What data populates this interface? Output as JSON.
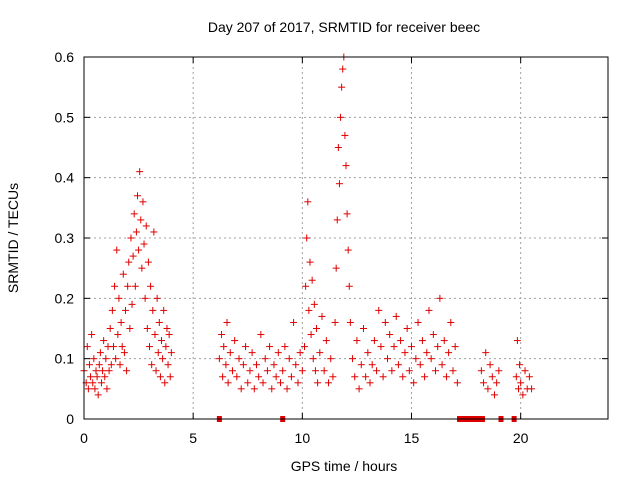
{
  "chart_data": {
    "type": "scatter",
    "title": "Day 207 of 2017, SRMTID for receiver beec",
    "xlabel": "GPS time / hours",
    "ylabel": "SRMTID / TECUs",
    "xlim": [
      0,
      24
    ],
    "ylim": [
      0,
      0.6
    ],
    "x_ticks": [
      0,
      5,
      10,
      15,
      20
    ],
    "y_ticks": [
      0,
      0.1,
      0.2,
      0.3,
      0.4,
      0.5,
      0.6
    ],
    "x_tick_labels": [
      "0",
      "5",
      "10",
      "15",
      "20"
    ],
    "y_tick_labels": [
      "0",
      "0.1",
      "0.2",
      "0.3",
      "0.4",
      "0.5",
      "0.6"
    ],
    "grid": true,
    "marker": "+",
    "color": "#e00000",
    "series": [
      {
        "name": "SRMTID",
        "points": [
          [
            0.0,
            0.08
          ],
          [
            0.1,
            0.06
          ],
          [
            0.15,
            0.12
          ],
          [
            0.2,
            0.05
          ],
          [
            0.25,
            0.09
          ],
          [
            0.3,
            0.07
          ],
          [
            0.35,
            0.14
          ],
          [
            0.4,
            0.06
          ],
          [
            0.45,
            0.1
          ],
          [
            0.5,
            0.05
          ],
          [
            0.55,
            0.08
          ],
          [
            0.6,
            0.07
          ],
          [
            0.65,
            0.04
          ],
          [
            0.7,
            0.09
          ],
          [
            0.75,
            0.11
          ],
          [
            0.8,
            0.06
          ],
          [
            0.85,
            0.08
          ],
          [
            0.9,
            0.13
          ],
          [
            0.95,
            0.07
          ],
          [
            1.0,
            0.1
          ],
          [
            1.05,
            0.05
          ],
          [
            1.1,
            0.12
          ],
          [
            1.15,
            0.08
          ],
          [
            1.2,
            0.15
          ],
          [
            1.25,
            0.09
          ],
          [
            1.3,
            0.18
          ],
          [
            1.35,
            0.12
          ],
          [
            1.4,
            0.22
          ],
          [
            1.45,
            0.1
          ],
          [
            1.5,
            0.28
          ],
          [
            1.55,
            0.14
          ],
          [
            1.6,
            0.2
          ],
          [
            1.65,
            0.09
          ],
          [
            1.7,
            0.16
          ],
          [
            1.75,
            0.12
          ],
          [
            1.8,
            0.24
          ],
          [
            1.85,
            0.11
          ],
          [
            1.9,
            0.18
          ],
          [
            1.95,
            0.08
          ],
          [
            2.0,
            0.22
          ],
          [
            2.05,
            0.26
          ],
          [
            2.1,
            0.15
          ],
          [
            2.15,
            0.3
          ],
          [
            2.2,
            0.19
          ],
          [
            2.25,
            0.27
          ],
          [
            2.3,
            0.34
          ],
          [
            2.35,
            0.22
          ],
          [
            2.4,
            0.31
          ],
          [
            2.45,
            0.37
          ],
          [
            2.5,
            0.28
          ],
          [
            2.55,
            0.41
          ],
          [
            2.6,
            0.33
          ],
          [
            2.65,
            0.25
          ],
          [
            2.7,
            0.36
          ],
          [
            2.75,
            0.29
          ],
          [
            2.8,
            0.2
          ],
          [
            2.85,
            0.32
          ],
          [
            2.9,
            0.15
          ],
          [
            2.95,
            0.26
          ],
          [
            3.0,
            0.12
          ],
          [
            3.05,
            0.22
          ],
          [
            3.1,
            0.09
          ],
          [
            3.15,
            0.18
          ],
          [
            3.2,
            0.31
          ],
          [
            3.25,
            0.14
          ],
          [
            3.3,
            0.08
          ],
          [
            3.35,
            0.2
          ],
          [
            3.4,
            0.11
          ],
          [
            3.45,
            0.16
          ],
          [
            3.5,
            0.07
          ],
          [
            3.55,
            0.13
          ],
          [
            3.6,
            0.1
          ],
          [
            3.65,
            0.18
          ],
          [
            3.7,
            0.06
          ],
          [
            3.75,
            0.12
          ],
          [
            3.8,
            0.15
          ],
          [
            3.85,
            0.09
          ],
          [
            3.9,
            0.14
          ],
          [
            3.95,
            0.07
          ],
          [
            4.0,
            0.11
          ],
          [
            6.2,
            0.1
          ],
          [
            6.3,
            0.14
          ],
          [
            6.35,
            0.07
          ],
          [
            6.4,
            0.12
          ],
          [
            6.5,
            0.09
          ],
          [
            6.55,
            0.16
          ],
          [
            6.6,
            0.06
          ],
          [
            6.7,
            0.11
          ],
          [
            6.8,
            0.08
          ],
          [
            6.9,
            0.13
          ],
          [
            7.0,
            0.07
          ],
          [
            7.1,
            0.1
          ],
          [
            7.2,
            0.05
          ],
          [
            7.3,
            0.09
          ],
          [
            7.4,
            0.12
          ],
          [
            7.5,
            0.06
          ],
          [
            7.6,
            0.08
          ],
          [
            7.7,
            0.11
          ],
          [
            7.8,
            0.05
          ],
          [
            7.9,
            0.09
          ],
          [
            8.0,
            0.07
          ],
          [
            8.1,
            0.14
          ],
          [
            8.2,
            0.06
          ],
          [
            8.3,
            0.1
          ],
          [
            8.4,
            0.08
          ],
          [
            8.5,
            0.12
          ],
          [
            8.6,
            0.05
          ],
          [
            8.7,
            0.09
          ],
          [
            8.8,
            0.07
          ],
          [
            8.9,
            0.11
          ],
          [
            9.0,
            0.06
          ],
          [
            9.1,
            0.08
          ],
          [
            9.2,
            0.12
          ],
          [
            9.3,
            0.05
          ],
          [
            9.4,
            0.1
          ],
          [
            9.5,
            0.07
          ],
          [
            9.6,
            0.16
          ],
          [
            9.7,
            0.09
          ],
          [
            9.8,
            0.06
          ],
          [
            9.9,
            0.11
          ],
          [
            10.0,
            0.08
          ],
          [
            10.1,
            0.12
          ],
          [
            10.15,
            0.22
          ],
          [
            10.2,
            0.3
          ],
          [
            10.25,
            0.36
          ],
          [
            10.3,
            0.18
          ],
          [
            10.35,
            0.26
          ],
          [
            10.4,
            0.14
          ],
          [
            10.45,
            0.23
          ],
          [
            10.5,
            0.1
          ],
          [
            10.55,
            0.19
          ],
          [
            10.6,
            0.08
          ],
          [
            10.65,
            0.15
          ],
          [
            10.7,
            0.06
          ],
          [
            10.8,
            0.11
          ],
          [
            10.9,
            0.17
          ],
          [
            11.0,
            0.08
          ],
          [
            11.1,
            0.13
          ],
          [
            11.2,
            0.06
          ],
          [
            11.3,
            0.1
          ],
          [
            11.4,
            0.07
          ],
          [
            11.5,
            0.16
          ],
          [
            11.55,
            0.25
          ],
          [
            11.6,
            0.33
          ],
          [
            11.65,
            0.45
          ],
          [
            11.7,
            0.39
          ],
          [
            11.75,
            0.5
          ],
          [
            11.8,
            0.55
          ],
          [
            11.85,
            0.58
          ],
          [
            11.9,
            0.6
          ],
          [
            11.95,
            0.47
          ],
          [
            12.0,
            0.42
          ],
          [
            12.05,
            0.34
          ],
          [
            12.1,
            0.28
          ],
          [
            12.15,
            0.22
          ],
          [
            12.2,
            0.16
          ],
          [
            12.3,
            0.1
          ],
          [
            12.4,
            0.07
          ],
          [
            12.5,
            0.13
          ],
          [
            12.6,
            0.05
          ],
          [
            12.7,
            0.09
          ],
          [
            12.8,
            0.15
          ],
          [
            12.9,
            0.07
          ],
          [
            13.0,
            0.11
          ],
          [
            13.1,
            0.06
          ],
          [
            13.2,
            0.09
          ],
          [
            13.3,
            0.13
          ],
          [
            13.4,
            0.08
          ],
          [
            13.5,
            0.18
          ],
          [
            13.6,
            0.12
          ],
          [
            13.7,
            0.07
          ],
          [
            13.8,
            0.16
          ],
          [
            13.9,
            0.1
          ],
          [
            14.0,
            0.14
          ],
          [
            14.1,
            0.08
          ],
          [
            14.2,
            0.12
          ],
          [
            14.3,
            0.17
          ],
          [
            14.4,
            0.09
          ],
          [
            14.5,
            0.13
          ],
          [
            14.6,
            0.07
          ],
          [
            14.7,
            0.11
          ],
          [
            14.8,
            0.15
          ],
          [
            14.9,
            0.08
          ],
          [
            15.0,
            0.12
          ],
          [
            15.1,
            0.06
          ],
          [
            15.2,
            0.1
          ],
          [
            15.3,
            0.16
          ],
          [
            15.4,
            0.09
          ],
          [
            15.5,
            0.13
          ],
          [
            15.6,
            0.07
          ],
          [
            15.7,
            0.11
          ],
          [
            15.8,
            0.18
          ],
          [
            15.9,
            0.1
          ],
          [
            16.0,
            0.14
          ],
          [
            16.1,
            0.08
          ],
          [
            16.2,
            0.12
          ],
          [
            16.3,
            0.2
          ],
          [
            16.4,
            0.09
          ],
          [
            16.5,
            0.13
          ],
          [
            16.6,
            0.07
          ],
          [
            16.7,
            0.11
          ],
          [
            16.8,
            0.16
          ],
          [
            16.9,
            0.08
          ],
          [
            17.0,
            0.12
          ],
          [
            17.1,
            0.06
          ],
          [
            18.2,
            0.08
          ],
          [
            18.3,
            0.06
          ],
          [
            18.4,
            0.11
          ],
          [
            18.5,
            0.05
          ],
          [
            18.6,
            0.09
          ],
          [
            18.7,
            0.07
          ],
          [
            18.8,
            0.04
          ],
          [
            18.9,
            0.06
          ],
          [
            19.0,
            0.08
          ],
          [
            19.8,
            0.07
          ],
          [
            19.85,
            0.13
          ],
          [
            19.9,
            0.05
          ],
          [
            19.95,
            0.09
          ],
          [
            20.0,
            0.06
          ],
          [
            20.1,
            0.04
          ],
          [
            20.2,
            0.08
          ],
          [
            20.3,
            0.05
          ],
          [
            20.4,
            0.07
          ],
          [
            20.5,
            0.05
          ]
        ]
      }
    ],
    "zero_markers_x": [
      6.2,
      9.1,
      17.2,
      17.35,
      17.5,
      17.65,
      17.8,
      17.95,
      18.1,
      18.25,
      19.1,
      19.7
    ]
  }
}
